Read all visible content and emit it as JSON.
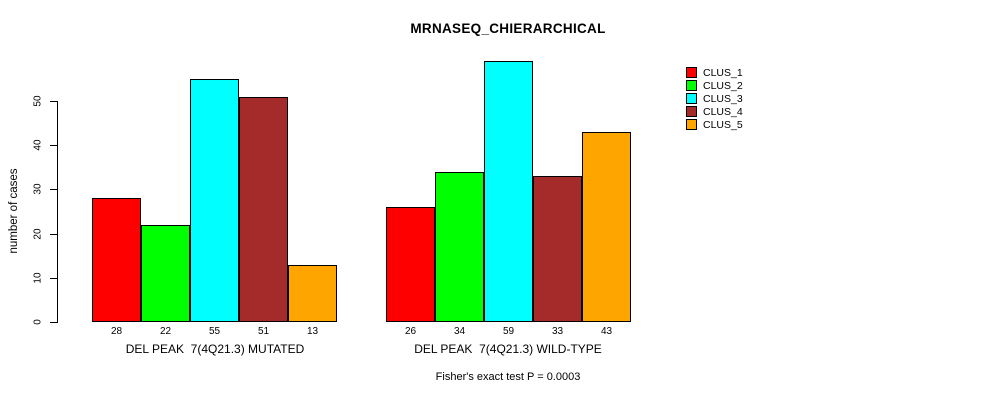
{
  "title": "MRNASEQ_CHIERARCHICAL",
  "chart_data": {
    "type": "bar",
    "title": "MRNASEQ_CHIERARCHICAL",
    "ylabel": "number of cases",
    "xlabel": "",
    "ylim": [
      0,
      60
    ],
    "yticks": [
      0,
      10,
      20,
      30,
      40,
      50
    ],
    "grid": false,
    "bar_value_labels_shown": true,
    "groups": [
      {
        "label": "DEL PEAK  7(4Q21.3) MUTATED",
        "key": "mutated",
        "values": [
          28,
          22,
          55,
          51,
          13
        ]
      },
      {
        "label": "DEL PEAK  7(4Q21.3) WILD-TYPE",
        "key": "wild-type",
        "values": [
          26,
          34,
          59,
          33,
          43
        ]
      }
    ],
    "series": [
      {
        "name": "CLUS_1",
        "color": "#FF0000",
        "values": [
          28,
          26
        ]
      },
      {
        "name": "CLUS_2",
        "color": "#00FF00",
        "values": [
          22,
          34
        ]
      },
      {
        "name": "CLUS_3",
        "color": "#00FFFF",
        "values": [
          55,
          59
        ]
      },
      {
        "name": "CLUS_4",
        "color": "#A52A2A",
        "values": [
          51,
          33
        ]
      },
      {
        "name": "CLUS_5",
        "color": "#FFA500",
        "values": [
          13,
          43
        ]
      }
    ],
    "legend": {
      "position": "right",
      "entries": [
        {
          "label": "CLUS_1",
          "color": "#FF0000"
        },
        {
          "label": "CLUS_2",
          "color": "#00FF00"
        },
        {
          "label": "CLUS_3",
          "color": "#00FFFF"
        },
        {
          "label": "CLUS_4",
          "color": "#A52A2A"
        },
        {
          "label": "CLUS_5",
          "color": "#FFA500"
        }
      ]
    },
    "annotation": "Fisher's exact test P = 0.0003",
    "axis_color": "#000000",
    "background_color": "#FFFFFF"
  }
}
